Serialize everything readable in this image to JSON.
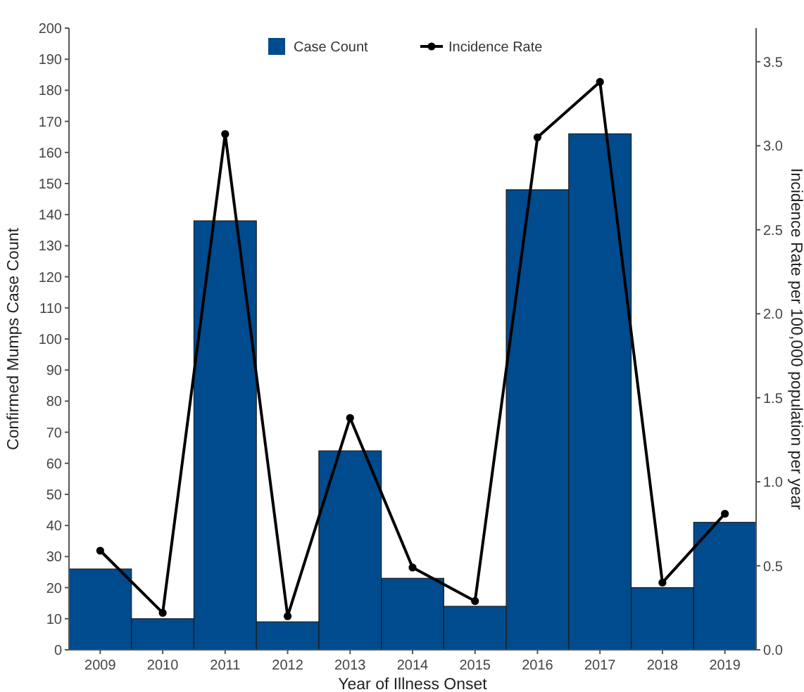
{
  "chart_data": {
    "type": "bar",
    "xlabel": "Year of Illness Onset",
    "ylabel": "Confirmed Mumps Case Count",
    "y2label": "Incidence Rate per 100,000 population per year",
    "categories": [
      "2009",
      "2010",
      "2011",
      "2012",
      "2013",
      "2014",
      "2015",
      "2016",
      "2017",
      "2018",
      "2019"
    ],
    "series": [
      {
        "name": "Case Count",
        "color": "#004b8d",
        "values": [
          26,
          10,
          138,
          9,
          64,
          23,
          14,
          148,
          166,
          20,
          41
        ]
      },
      {
        "name": "Incidence Rate",
        "type": "line",
        "axis": "y2",
        "color": "#000000",
        "values": [
          0.59,
          0.22,
          3.07,
          0.2,
          1.38,
          0.49,
          0.29,
          3.05,
          3.38,
          0.4,
          0.81
        ]
      }
    ],
    "ylim": [
      0,
      200
    ],
    "yticks": [
      0,
      10,
      20,
      30,
      40,
      50,
      60,
      70,
      80,
      90,
      100,
      110,
      120,
      130,
      140,
      150,
      160,
      170,
      180,
      190,
      200
    ],
    "y2lim": [
      0,
      3.7
    ],
    "y2ticks": [
      {
        "value": 0,
        "label": "0.0"
      },
      {
        "value": 0.5,
        "label": "0.5"
      },
      {
        "value": 1,
        "label": "1.0"
      },
      {
        "value": 1.5,
        "label": "1.5"
      },
      {
        "value": 2,
        "label": "2.0"
      },
      {
        "value": 2.5,
        "label": "2.5"
      },
      {
        "value": 3,
        "label": "3.0"
      },
      {
        "value": 3.5,
        "label": "3.5"
      }
    ],
    "legend": "top",
    "marker": "circle",
    "line_style": "solid",
    "grid": false
  }
}
